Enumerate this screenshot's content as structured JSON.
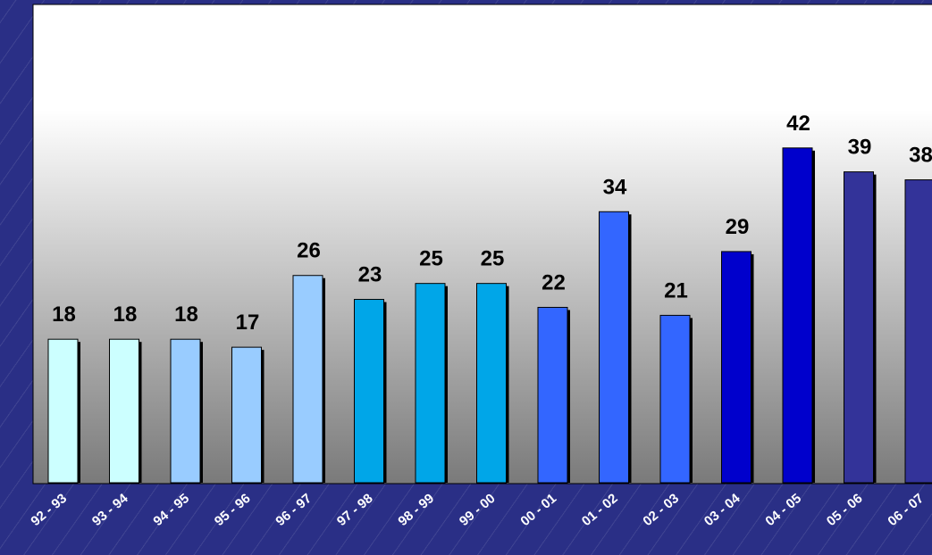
{
  "chart_data": {
    "type": "bar",
    "title": "",
    "xlabel": "",
    "ylabel": "",
    "categories": [
      "92 - 93",
      "93 - 94",
      "94 - 95",
      "95 - 96",
      "96 - 97",
      "97 - 98",
      "98 - 99",
      "99 - 00",
      "00 - 01",
      "01 - 02",
      "02 - 03",
      "03 - 04",
      "04 - 05",
      "05 - 06",
      "06 - 07"
    ],
    "values": [
      18,
      18,
      18,
      17,
      26,
      23,
      25,
      25,
      22,
      34,
      21,
      29,
      42,
      39,
      38
    ],
    "bar_colors": [
      "#ccffff",
      "#ccffff",
      "#99ccff",
      "#99ccff",
      "#99ccff",
      "#00a6e8",
      "#00a6e8",
      "#00a6e8",
      "#3366ff",
      "#3366ff",
      "#3366ff",
      "#0000cc",
      "#0000cc",
      "#333399",
      "#333399"
    ],
    "ylim": [
      0,
      60
    ],
    "grid": false,
    "legend": "none",
    "data_labels": true,
    "plot_background": "gradient white to gray",
    "page_background": "#2a2f86"
  }
}
